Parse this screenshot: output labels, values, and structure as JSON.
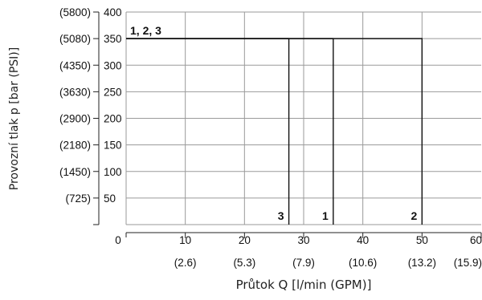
{
  "chart_data": {
    "type": "line",
    "xlabel": "Průtok Q [l/min (GPM)]",
    "ylabel": "Provozní tlak p [bar (PSI)]",
    "xlim": [
      0,
      60
    ],
    "ylim": [
      0,
      400
    ],
    "grid": true,
    "x_ticks": [
      {
        "value": 0,
        "label": "0"
      },
      {
        "value": 10,
        "label": "10"
      },
      {
        "value": 20,
        "label": "20"
      },
      {
        "value": 30,
        "label": "30"
      },
      {
        "value": 40,
        "label": "40"
      },
      {
        "value": 50,
        "label": "50"
      },
      {
        "value": 60,
        "label": "60"
      }
    ],
    "x_ticks_gpm": [
      {
        "value": 10,
        "label": "(2.6)"
      },
      {
        "value": 20,
        "label": "(5.3)"
      },
      {
        "value": 30,
        "label": "(7.9)"
      },
      {
        "value": 40,
        "label": "(10.6)"
      },
      {
        "value": 50,
        "label": "(13.2)"
      },
      {
        "value": 60,
        "label": "(15.9)"
      }
    ],
    "y_ticks": [
      {
        "value": 50,
        "label": "50"
      },
      {
        "value": 100,
        "label": "100"
      },
      {
        "value": 150,
        "label": "150"
      },
      {
        "value": 200,
        "label": "200"
      },
      {
        "value": 250,
        "label": "250"
      },
      {
        "value": 300,
        "label": "300"
      },
      {
        "value": 350,
        "label": "350"
      },
      {
        "value": 400,
        "label": "400"
      }
    ],
    "y_ticks_psi": [
      {
        "value": 50,
        "label": "(725)"
      },
      {
        "value": 100,
        "label": "(1450)"
      },
      {
        "value": 150,
        "label": "(2180)"
      },
      {
        "value": 200,
        "label": "(2900)"
      },
      {
        "value": 250,
        "label": "(3630)"
      },
      {
        "value": 300,
        "label": "(4350)"
      },
      {
        "value": 350,
        "label": "(5080)"
      },
      {
        "value": 400,
        "label": "(5800)"
      }
    ],
    "series": [
      {
        "name": "1",
        "x": [
          0,
          35,
          35
        ],
        "y": [
          350,
          350,
          0
        ]
      },
      {
        "name": "2",
        "x": [
          0,
          50,
          50
        ],
        "y": [
          350,
          350,
          0
        ]
      },
      {
        "name": "3",
        "x": [
          0,
          27.5,
          27.5
        ],
        "y": [
          350,
          350,
          0
        ]
      }
    ],
    "annotations": [
      {
        "text": "1, 2, 3",
        "x": 0,
        "y": 350
      },
      {
        "text": "3",
        "x": 27.5,
        "y": 0
      },
      {
        "text": "1",
        "x": 35,
        "y": 0
      },
      {
        "text": "2",
        "x": 50,
        "y": 0
      }
    ]
  }
}
